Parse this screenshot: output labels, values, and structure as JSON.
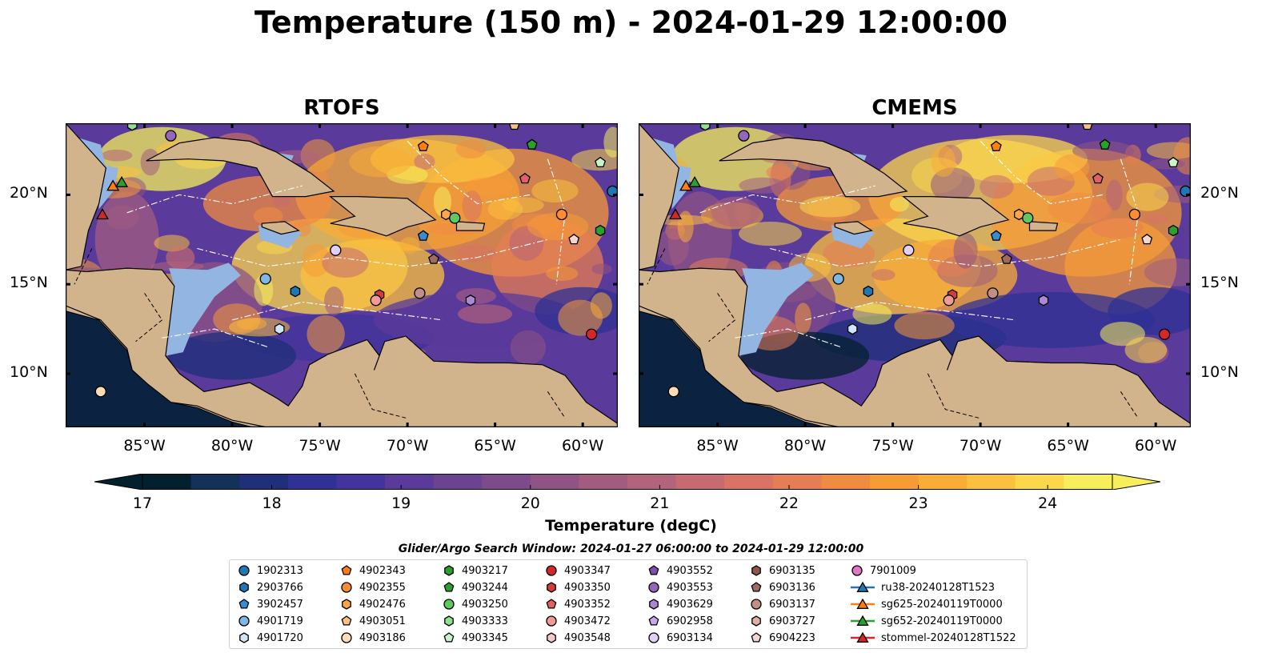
{
  "title": "Temperature (150 m) - 2024-01-29 12:00:00",
  "panels": [
    {
      "name": "RTOFS"
    },
    {
      "name": "CMEMS"
    }
  ],
  "colors": {
    "land": "#d2b48c",
    "shelf": "#93b5e1",
    "deep": "#0b2240"
  },
  "axes": {
    "x_ticks": [
      "85°W",
      "80°W",
      "75°W",
      "70°W",
      "65°W",
      "60°W"
    ],
    "y_ticks": [
      "20°N",
      "15°N",
      "10°N"
    ],
    "lon_range": [
      -89.5,
      -58
    ],
    "lat_range": [
      7,
      24
    ]
  },
  "colorbar": {
    "label": "Temperature (degC)",
    "ticks": [
      "17",
      "18",
      "19",
      "20",
      "21",
      "22",
      "23",
      "24"
    ],
    "range": [
      16.5,
      25
    ],
    "colormap": [
      "#03202f",
      "#13325a",
      "#1f2f7a",
      "#2f3194",
      "#43349c",
      "#5a3a9a",
      "#6c4391",
      "#7e4b8a",
      "#8f5384",
      "#a15c80",
      "#b4637c",
      "#c76b72",
      "#d97464",
      "#e57e52",
      "#f08c42",
      "#f79b36",
      "#faad36",
      "#fbc13e",
      "#fcd74b",
      "#f6ef5b"
    ]
  },
  "window": "Glider/Argo Search Window: 2024-01-27 06:00:00 to 2024-01-29 12:00:00",
  "legend": [
    {
      "label": "1902313",
      "marker": "circle",
      "color": "#1f77b4"
    },
    {
      "label": "2903766",
      "marker": "hexagon",
      "color": "#1f77b4"
    },
    {
      "label": "3902457",
      "marker": "pentagon",
      "color": "#3a8bd0"
    },
    {
      "label": "4901719",
      "marker": "circle",
      "color": "#7eb6e6"
    },
    {
      "label": "4901720",
      "marker": "hexagon",
      "color": "#cfe6f8"
    },
    {
      "label": "4902343",
      "marker": "pentagon",
      "color": "#ff7f0e"
    },
    {
      "label": "4902355",
      "marker": "circle",
      "color": "#ff8c2e"
    },
    {
      "label": "4902476",
      "marker": "hexagon",
      "color": "#ffa64d"
    },
    {
      "label": "4903051",
      "marker": "pentagon",
      "color": "#ffc07f"
    },
    {
      "label": "4903186",
      "marker": "circle",
      "color": "#ffdcb8"
    },
    {
      "label": "4903217",
      "marker": "hexagon",
      "color": "#2ca02c"
    },
    {
      "label": "4903244",
      "marker": "pentagon",
      "color": "#2ca02c"
    },
    {
      "label": "4903250",
      "marker": "circle",
      "color": "#5ec95e"
    },
    {
      "label": "4903333",
      "marker": "hexagon",
      "color": "#8fe08f"
    },
    {
      "label": "4903345",
      "marker": "pentagon",
      "color": "#c8f5c8"
    },
    {
      "label": "4903347",
      "marker": "circle",
      "color": "#d62728"
    },
    {
      "label": "4903350",
      "marker": "hexagon",
      "color": "#d83a3a"
    },
    {
      "label": "4903352",
      "marker": "pentagon",
      "color": "#e46161"
    },
    {
      "label": "4903472",
      "marker": "circle",
      "color": "#f29a9a"
    },
    {
      "label": "4903548",
      "marker": "hexagon",
      "color": "#f8c9c9"
    },
    {
      "label": "4903552",
      "marker": "pentagon",
      "color": "#7e4fb0"
    },
    {
      "label": "4903553",
      "marker": "circle",
      "color": "#9467bd"
    },
    {
      "label": "4903629",
      "marker": "hexagon",
      "color": "#ad86d6"
    },
    {
      "label": "6902958",
      "marker": "pentagon",
      "color": "#c7a9e8"
    },
    {
      "label": "6903134",
      "marker": "circle",
      "color": "#e2cff6"
    },
    {
      "label": "6903135",
      "marker": "hexagon",
      "color": "#8c564b"
    },
    {
      "label": "6903136",
      "marker": "pentagon",
      "color": "#a06b5f"
    },
    {
      "label": "6903137",
      "marker": "circle",
      "color": "#c28f84"
    },
    {
      "label": "6903727",
      "marker": "hexagon",
      "color": "#dcb0a6"
    },
    {
      "label": "6904223",
      "marker": "pentagon",
      "color": "#f4d6cf"
    },
    {
      "label": "7901009",
      "marker": "circle",
      "color": "#e377c2"
    },
    {
      "label": "ru38-20240128T1523",
      "marker": "line-triangle",
      "color": "#1f77b4"
    },
    {
      "label": "sg625-20240119T0000",
      "marker": "line-triangle",
      "color": "#ff7f0e"
    },
    {
      "label": "sg652-20240119T0000",
      "marker": "line-triangle",
      "color": "#2ca02c"
    },
    {
      "label": "stommel-20240128T1522",
      "marker": "line-triangle",
      "color": "#d62728"
    }
  ],
  "floats": [
    {
      "lon": -58.3,
      "lat": 20.2,
      "marker": "circle",
      "color": "#1f77b4"
    },
    {
      "lon": -69.1,
      "lat": 17.7,
      "marker": "pentagon",
      "color": "#3a8bd0"
    },
    {
      "lon": -78.1,
      "lat": 15.3,
      "marker": "circle",
      "color": "#7eb6e6"
    },
    {
      "lon": -76.4,
      "lat": 14.6,
      "marker": "hexagon",
      "color": "#1f77b4"
    },
    {
      "lon": -77.3,
      "lat": 12.5,
      "marker": "hexagon",
      "color": "#cfe6f8"
    },
    {
      "lon": -69.1,
      "lat": 22.7,
      "marker": "pentagon",
      "color": "#ff7f0e"
    },
    {
      "lon": -61.2,
      "lat": 18.9,
      "marker": "circle",
      "color": "#ff8c2e"
    },
    {
      "lon": -67.8,
      "lat": 18.9,
      "marker": "hexagon",
      "color": "#ffa64d"
    },
    {
      "lon": -63.9,
      "lat": 23.9,
      "marker": "pentagon",
      "color": "#ffc07f"
    },
    {
      "lon": -87.5,
      "lat": 9.0,
      "marker": "circle",
      "color": "#ffdcb8"
    },
    {
      "lon": -59.0,
      "lat": 18.0,
      "marker": "hexagon",
      "color": "#2ca02c"
    },
    {
      "lon": -62.9,
      "lat": 22.8,
      "marker": "pentagon",
      "color": "#2ca02c"
    },
    {
      "lon": -67.3,
      "lat": 18.7,
      "marker": "circle",
      "color": "#5ec95e"
    },
    {
      "lon": -85.7,
      "lat": 23.9,
      "marker": "hexagon",
      "color": "#8fe08f"
    },
    {
      "lon": -59.0,
      "lat": 21.8,
      "marker": "pentagon",
      "color": "#c8f5c8"
    },
    {
      "lon": -59.5,
      "lat": 12.2,
      "marker": "circle",
      "color": "#d62728"
    },
    {
      "lon": -71.6,
      "lat": 14.4,
      "marker": "hexagon",
      "color": "#d83a3a"
    },
    {
      "lon": -63.3,
      "lat": 20.9,
      "marker": "pentagon",
      "color": "#e46161"
    },
    {
      "lon": -71.8,
      "lat": 14.1,
      "marker": "circle",
      "color": "#f29a9a"
    },
    {
      "lon": -66.4,
      "lat": 14.1,
      "marker": "hexagon",
      "color": "#ad86d6"
    },
    {
      "lon": -68.5,
      "lat": 16.4,
      "marker": "pentagon",
      "color": "#a06b5f"
    },
    {
      "lon": -69.3,
      "lat": 14.5,
      "marker": "circle",
      "color": "#c28f84"
    },
    {
      "lon": -74.1,
      "lat": 16.9,
      "marker": "circle",
      "color": "#e2cff6"
    },
    {
      "lon": -60.5,
      "lat": 17.5,
      "marker": "pentagon",
      "color": "#f4d6cf"
    },
    {
      "lon": -83.5,
      "lat": 23.3,
      "marker": "circle",
      "color": "#9467bd"
    },
    {
      "lon": -86.8,
      "lat": 20.5,
      "marker": "triangle",
      "color": "#ff7f0e"
    },
    {
      "lon": -86.3,
      "lat": 20.7,
      "marker": "triangle",
      "color": "#2ca02c"
    },
    {
      "lon": -87.4,
      "lat": 18.9,
      "marker": "triangle",
      "color": "#d62728"
    }
  ]
}
